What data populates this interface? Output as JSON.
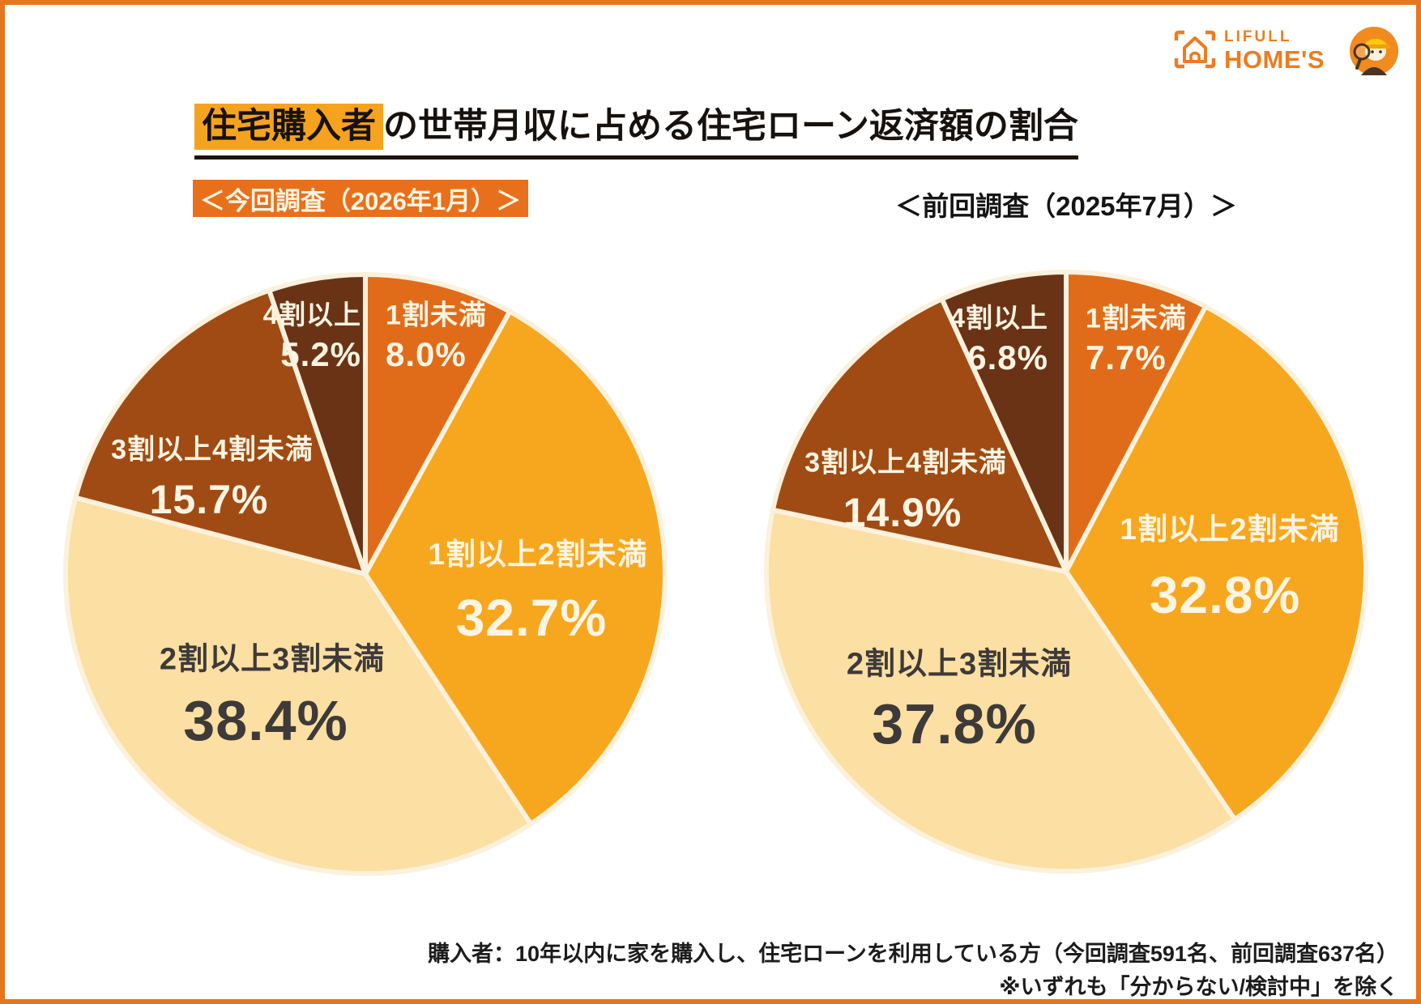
{
  "page": {
    "title": {
      "highlight": "住宅購入者",
      "rest": "の世帯月収に占める住宅ローン返済額の割合"
    },
    "footnote_line1": "購入者：10年以内に家を購入し、住宅ローンを利用している方（今回調査591名、前回調査637名）",
    "footnote_line2": "※いずれも「分からない/検討中」を除く"
  },
  "logo": {
    "brand_line1": "LIFULL",
    "brand_line2": "HOME'S",
    "house_icon": "house-viewfinder-icon",
    "mascot_icon": "homes-kun-mascot-icon",
    "brand_color": "#ED7C20"
  },
  "colors": {
    "frame_orange": "#E5761D",
    "title_highlight": "#F5A31E",
    "current_survey_label_bg": "#E8701C",
    "slice_divider": "#FBF1DC",
    "slice_text_cream": "#FDF4E2",
    "slice_text_dark": "#3E3A39"
  },
  "chart_data": [
    {
      "type": "pie",
      "title": "＜今回調査（2026年1月）＞",
      "categories": [
        "1割未満",
        "1割以上2割未満",
        "2割以上3割未満",
        "3割以上4割未満",
        "4割以上"
      ],
      "values": [
        8.0,
        32.7,
        38.4,
        15.7,
        5.2
      ],
      "value_labels": [
        "8.0%",
        "32.7%",
        "38.4%",
        "15.7%",
        "5.2%"
      ],
      "colors": [
        "#E06C1A",
        "#F7A71E",
        "#FBDFA3",
        "#A04B14",
        "#6B3316"
      ],
      "start_angle_deg": 0,
      "direction": "clockwise",
      "legend": "none",
      "labels_position": "inside"
    },
    {
      "type": "pie",
      "title": "＜前回調査（2025年7月）＞",
      "categories": [
        "1割未満",
        "1割以上2割未満",
        "2割以上3割未満",
        "3割以上4割未満",
        "4割以上"
      ],
      "values": [
        7.7,
        32.8,
        37.8,
        14.9,
        6.8
      ],
      "value_labels": [
        "7.7%",
        "32.8%",
        "37.8%",
        "14.9%",
        "6.8%"
      ],
      "colors": [
        "#E06C1A",
        "#F7A71E",
        "#FBDFA3",
        "#A04B14",
        "#6B3316"
      ],
      "start_angle_deg": 0,
      "direction": "clockwise",
      "legend": "none",
      "labels_position": "inside"
    }
  ]
}
